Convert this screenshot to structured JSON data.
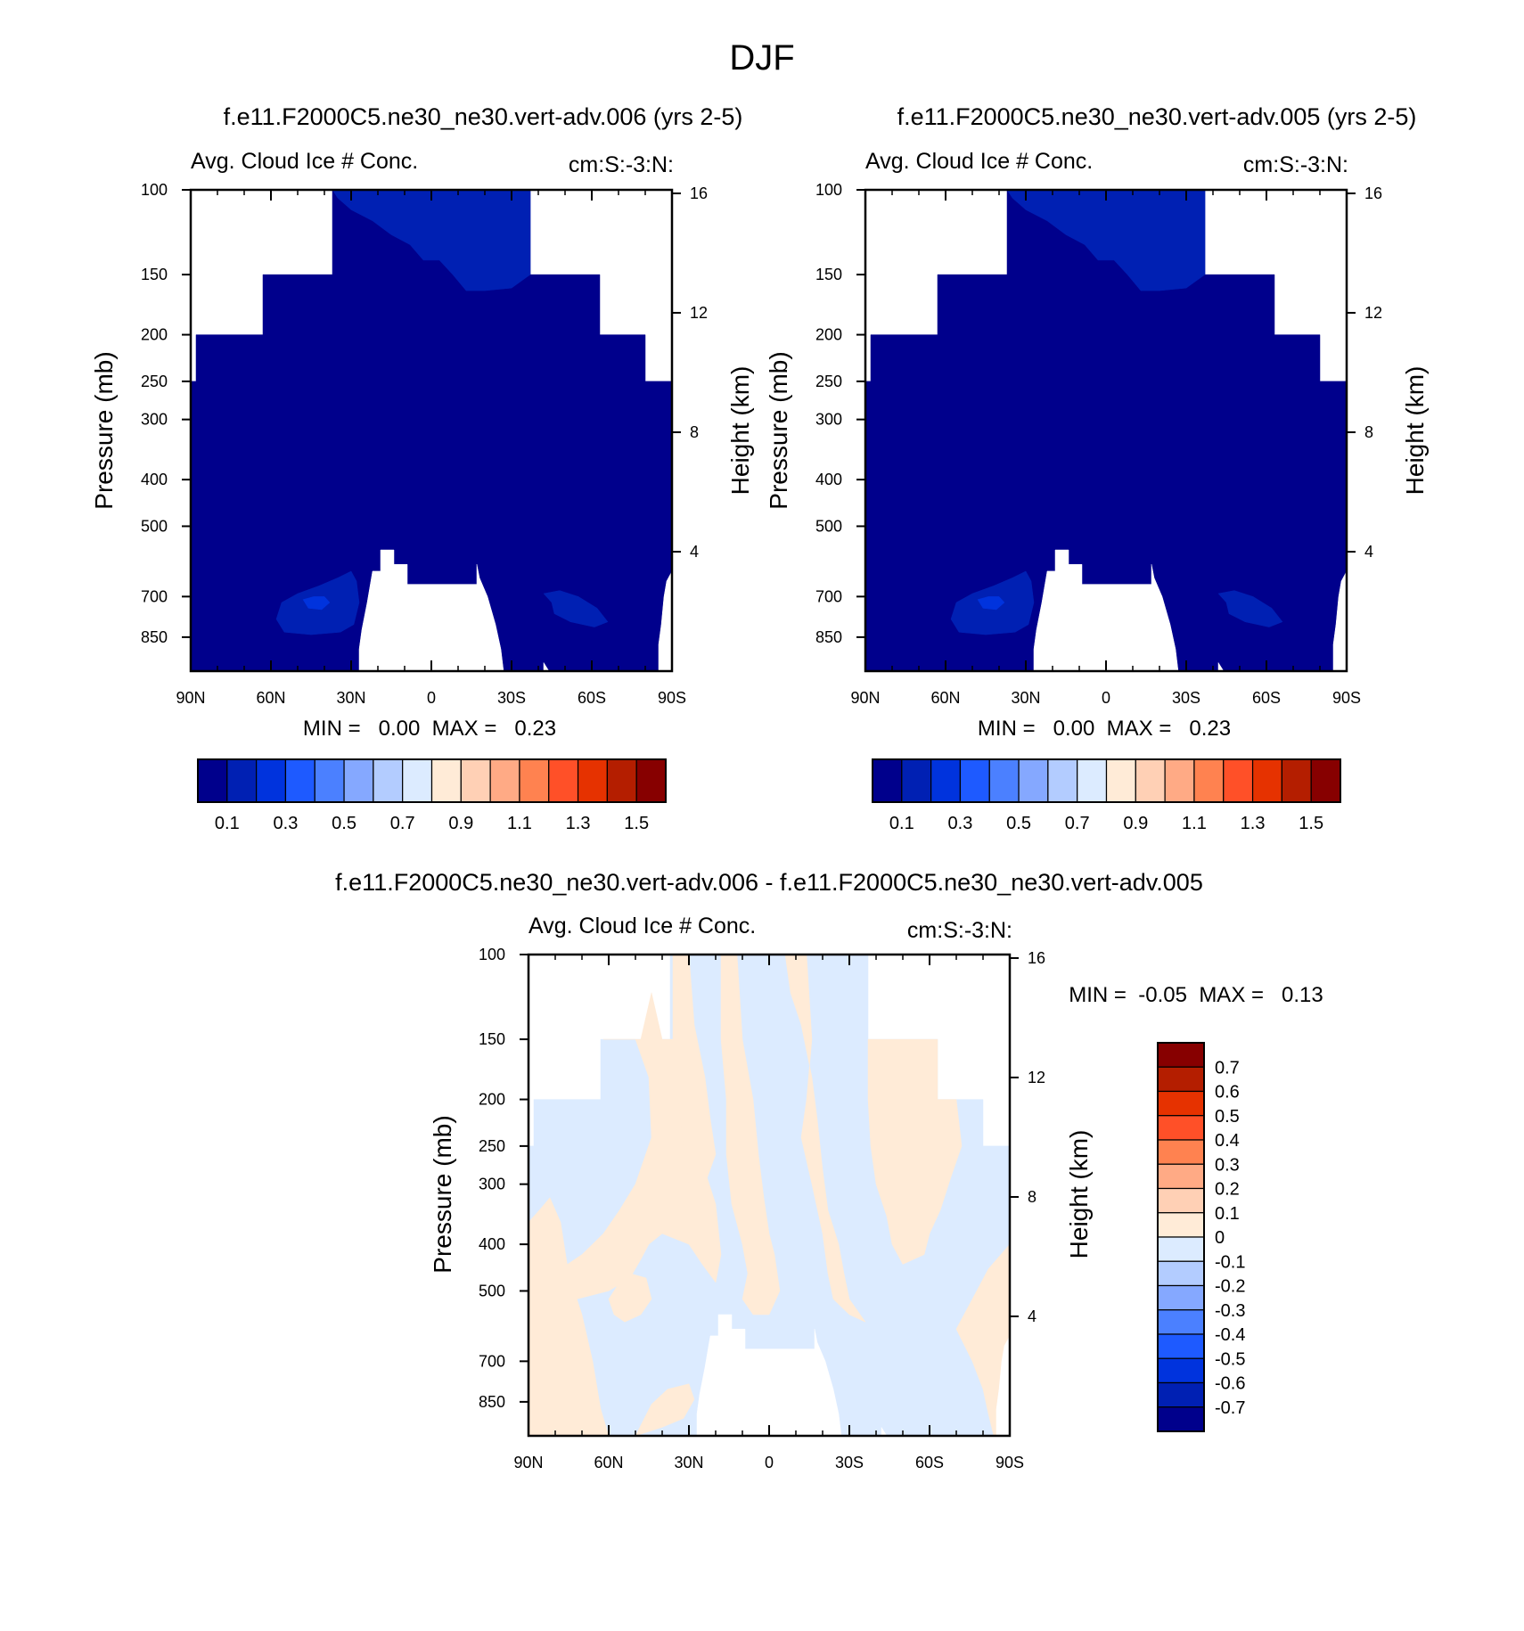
{
  "page_title": "DJF",
  "chart_data": [
    {
      "type": "heatmap",
      "id": "panel1",
      "title": "f.e11.F2000C5.ne30_ne30.vert-adv.006 (yrs 2-5)",
      "subtitle_left": "Avg. Cloud Ice # Conc.",
      "subtitle_right": "cm:S:-3:N:",
      "xlabel": "",
      "ylabel": "Pressure (mb)",
      "ylabel_right": "Height (km)",
      "x_ticks": [
        "90N",
        "60N",
        "30N",
        "0",
        "30S",
        "60S",
        "90S"
      ],
      "x_range": [
        90,
        -90
      ],
      "y_ticks": [
        100,
        150,
        200,
        250,
        300,
        400,
        500,
        700,
        850
      ],
      "y_range": [
        100,
        1000
      ],
      "y_scale": "log",
      "right_ticks": [
        16,
        12,
        8,
        4
      ],
      "min_max": "MIN =   0.00  MAX =   0.23",
      "min": 0.0,
      "max": 0.23,
      "fill": "mostly lowest bin (<0.1), patches 0.1-0.2"
    },
    {
      "type": "heatmap",
      "id": "panel2",
      "title": "f.e11.F2000C5.ne30_ne30.vert-adv.005 (yrs 2-5)",
      "subtitle_left": "Avg. Cloud Ice # Conc.",
      "subtitle_right": "cm:S:-3:N:",
      "xlabel": "",
      "ylabel": "Pressure (mb)",
      "ylabel_right": "Height (km)",
      "x_ticks": [
        "90N",
        "60N",
        "30N",
        "0",
        "30S",
        "60S",
        "90S"
      ],
      "x_range": [
        90,
        -90
      ],
      "y_ticks": [
        100,
        150,
        200,
        250,
        300,
        400,
        500,
        700,
        850
      ],
      "y_range": [
        100,
        1000
      ],
      "y_scale": "log",
      "right_ticks": [
        16,
        12,
        8,
        4
      ],
      "min_max": "MIN =   0.00  MAX =   0.23",
      "min": 0.0,
      "max": 0.23,
      "fill": "mostly lowest bin (<0.1), patches 0.1-0.2"
    },
    {
      "type": "heatmap",
      "id": "panel3",
      "title": "f.e11.F2000C5.ne30_ne30.vert-adv.006 - f.e11.F2000C5.ne30_ne30.vert-adv.005",
      "subtitle_left": "Avg. Cloud Ice # Conc.",
      "subtitle_right": "cm:S:-3:N:",
      "xlabel": "",
      "ylabel": "Pressure (mb)",
      "ylabel_right": "Height (km)",
      "x_ticks": [
        "90N",
        "60N",
        "30N",
        "0",
        "30S",
        "60S",
        "90S"
      ],
      "x_range": [
        90,
        -90
      ],
      "y_ticks": [
        100,
        150,
        200,
        250,
        300,
        400,
        500,
        700,
        850
      ],
      "y_range": [
        100,
        1000
      ],
      "y_scale": "log",
      "right_ticks": [
        16,
        12,
        8,
        4
      ],
      "min_max": "MIN =  -0.05  MAX =   0.13",
      "min": -0.05,
      "max": 0.13,
      "fill": "alternating bins 0 to 0.1 (peach) and -0.1 to 0 (light blue)"
    }
  ],
  "colorbar_main": {
    "orientation": "horizontal",
    "colors": [
      "#00008C",
      "#0020B3",
      "#0033DD",
      "#1E5AFF",
      "#4B80FF",
      "#85A8FF",
      "#B3CCFF",
      "#DCEBFF",
      "#FFEBD7",
      "#FFD0B5",
      "#FFAA85",
      "#FF8250",
      "#FF5028",
      "#E63200",
      "#B41E00",
      "#870000"
    ],
    "labels": [
      "0.1",
      "0.3",
      "0.5",
      "0.7",
      "0.9",
      "1.1",
      "1.3",
      "1.5"
    ]
  },
  "colorbar_diff": {
    "orientation": "vertical",
    "colors_top_to_bottom": [
      "#870000",
      "#B41E00",
      "#E63200",
      "#FF5028",
      "#FF8250",
      "#FFAA85",
      "#FFD0B5",
      "#FFEBD7",
      "#DCEBFF",
      "#B3CCFF",
      "#85A8FF",
      "#4B80FF",
      "#1E5AFF",
      "#0033DD",
      "#0020B3",
      "#00008C"
    ],
    "labels_top_to_bottom": [
      "0.7",
      "0.6",
      "0.5",
      "0.4",
      "0.3",
      "0.2",
      "0.1",
      "0",
      "-0.1",
      "-0.2",
      "-0.3",
      "-0.4",
      "-0.5",
      "-0.6",
      "-0.7"
    ]
  }
}
